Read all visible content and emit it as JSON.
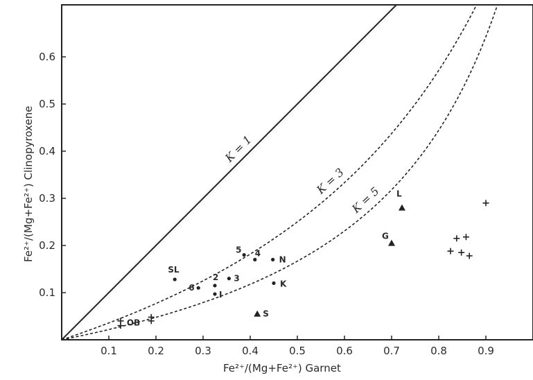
{
  "chart_data": {
    "type": "scatter",
    "title": "",
    "xlabel": "Fe²⁺/(Mg+Fe²⁺)   Garnet",
    "ylabel": "Fe²⁺/(Mg+Fe²⁺)   Clinopyroxene",
    "xlim": [
      0,
      1.0
    ],
    "ylim": [
      0,
      0.71
    ],
    "xticks": [
      "0.1",
      "0.2",
      "0.3",
      "0.4",
      "0.5",
      "0.6",
      "0.7",
      "0.8",
      "0.9"
    ],
    "yticks": [
      "0.1",
      "0.2",
      "0.3",
      "0.4",
      "0.5",
      "0.6"
    ],
    "grid": false,
    "curves": [
      {
        "label": "K = 1",
        "k": 1,
        "style": "solid"
      },
      {
        "label": "K = 3",
        "k": 3,
        "style": "dashed"
      },
      {
        "label": "K = 5",
        "k": 5,
        "style": "dashed"
      }
    ],
    "dots": [
      {
        "label": "SL",
        "x": 0.24,
        "y": 0.128
      },
      {
        "label": "6",
        "x": 0.29,
        "y": 0.11
      },
      {
        "label": "2",
        "x": 0.325,
        "y": 0.115
      },
      {
        "label": "3",
        "x": 0.355,
        "y": 0.13
      },
      {
        "label": "I",
        "x": 0.325,
        "y": 0.097
      },
      {
        "label": "5",
        "x": 0.387,
        "y": 0.18
      },
      {
        "label": "4",
        "x": 0.41,
        "y": 0.17
      },
      {
        "label": "N",
        "x": 0.448,
        "y": 0.17
      },
      {
        "label": "K",
        "x": 0.45,
        "y": 0.12
      }
    ],
    "triangles": [
      {
        "label": "S",
        "x": 0.415,
        "y": 0.055
      },
      {
        "label": "L",
        "x": 0.722,
        "y": 0.28
      },
      {
        "label": "G",
        "x": 0.7,
        "y": 0.205
      }
    ],
    "crosses": [
      {
        "x": 0.125,
        "y": 0.04
      },
      {
        "x": 0.125,
        "y": 0.03
      },
      {
        "x": 0.19,
        "y": 0.048
      },
      {
        "x": 0.19,
        "y": 0.04
      },
      {
        "x": 0.9,
        "y": 0.29
      },
      {
        "x": 0.838,
        "y": 0.215
      },
      {
        "x": 0.858,
        "y": 0.218
      },
      {
        "x": 0.825,
        "y": 0.188
      },
      {
        "x": 0.848,
        "y": 0.185
      },
      {
        "x": 0.865,
        "y": 0.178
      }
    ],
    "cross_group_label": "OB"
  }
}
